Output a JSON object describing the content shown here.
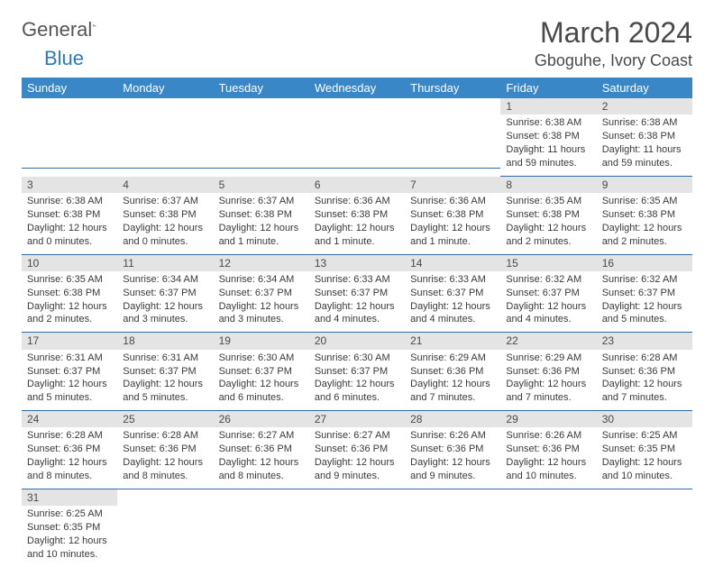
{
  "logo": {
    "text1": "General",
    "text2": "Blue",
    "brand_color": "#2c79bf"
  },
  "title": {
    "month": "March 2024",
    "location": "Gboguhe, Ivory Coast"
  },
  "colors": {
    "header_bg": "#3a87c7",
    "header_fg": "#ffffff",
    "daynum_bg": "#e4e4e4",
    "cell_border": "#2c6ca8",
    "text": "#3a3a3a"
  },
  "weekdays": [
    "Sunday",
    "Monday",
    "Tuesday",
    "Wednesday",
    "Thursday",
    "Friday",
    "Saturday"
  ],
  "weeks": [
    [
      null,
      null,
      null,
      null,
      null,
      {
        "n": "1",
        "sr": "Sunrise: 6:38 AM",
        "ss": "Sunset: 6:38 PM",
        "d1": "Daylight: 11 hours",
        "d2": "and 59 minutes."
      },
      {
        "n": "2",
        "sr": "Sunrise: 6:38 AM",
        "ss": "Sunset: 6:38 PM",
        "d1": "Daylight: 11 hours",
        "d2": "and 59 minutes."
      }
    ],
    [
      {
        "n": "3",
        "sr": "Sunrise: 6:38 AM",
        "ss": "Sunset: 6:38 PM",
        "d1": "Daylight: 12 hours",
        "d2": "and 0 minutes."
      },
      {
        "n": "4",
        "sr": "Sunrise: 6:37 AM",
        "ss": "Sunset: 6:38 PM",
        "d1": "Daylight: 12 hours",
        "d2": "and 0 minutes."
      },
      {
        "n": "5",
        "sr": "Sunrise: 6:37 AM",
        "ss": "Sunset: 6:38 PM",
        "d1": "Daylight: 12 hours",
        "d2": "and 1 minute."
      },
      {
        "n": "6",
        "sr": "Sunrise: 6:36 AM",
        "ss": "Sunset: 6:38 PM",
        "d1": "Daylight: 12 hours",
        "d2": "and 1 minute."
      },
      {
        "n": "7",
        "sr": "Sunrise: 6:36 AM",
        "ss": "Sunset: 6:38 PM",
        "d1": "Daylight: 12 hours",
        "d2": "and 1 minute."
      },
      {
        "n": "8",
        "sr": "Sunrise: 6:35 AM",
        "ss": "Sunset: 6:38 PM",
        "d1": "Daylight: 12 hours",
        "d2": "and 2 minutes."
      },
      {
        "n": "9",
        "sr": "Sunrise: 6:35 AM",
        "ss": "Sunset: 6:38 PM",
        "d1": "Daylight: 12 hours",
        "d2": "and 2 minutes."
      }
    ],
    [
      {
        "n": "10",
        "sr": "Sunrise: 6:35 AM",
        "ss": "Sunset: 6:38 PM",
        "d1": "Daylight: 12 hours",
        "d2": "and 2 minutes."
      },
      {
        "n": "11",
        "sr": "Sunrise: 6:34 AM",
        "ss": "Sunset: 6:37 PM",
        "d1": "Daylight: 12 hours",
        "d2": "and 3 minutes."
      },
      {
        "n": "12",
        "sr": "Sunrise: 6:34 AM",
        "ss": "Sunset: 6:37 PM",
        "d1": "Daylight: 12 hours",
        "d2": "and 3 minutes."
      },
      {
        "n": "13",
        "sr": "Sunrise: 6:33 AM",
        "ss": "Sunset: 6:37 PM",
        "d1": "Daylight: 12 hours",
        "d2": "and 4 minutes."
      },
      {
        "n": "14",
        "sr": "Sunrise: 6:33 AM",
        "ss": "Sunset: 6:37 PM",
        "d1": "Daylight: 12 hours",
        "d2": "and 4 minutes."
      },
      {
        "n": "15",
        "sr": "Sunrise: 6:32 AM",
        "ss": "Sunset: 6:37 PM",
        "d1": "Daylight: 12 hours",
        "d2": "and 4 minutes."
      },
      {
        "n": "16",
        "sr": "Sunrise: 6:32 AM",
        "ss": "Sunset: 6:37 PM",
        "d1": "Daylight: 12 hours",
        "d2": "and 5 minutes."
      }
    ],
    [
      {
        "n": "17",
        "sr": "Sunrise: 6:31 AM",
        "ss": "Sunset: 6:37 PM",
        "d1": "Daylight: 12 hours",
        "d2": "and 5 minutes."
      },
      {
        "n": "18",
        "sr": "Sunrise: 6:31 AM",
        "ss": "Sunset: 6:37 PM",
        "d1": "Daylight: 12 hours",
        "d2": "and 5 minutes."
      },
      {
        "n": "19",
        "sr": "Sunrise: 6:30 AM",
        "ss": "Sunset: 6:37 PM",
        "d1": "Daylight: 12 hours",
        "d2": "and 6 minutes."
      },
      {
        "n": "20",
        "sr": "Sunrise: 6:30 AM",
        "ss": "Sunset: 6:37 PM",
        "d1": "Daylight: 12 hours",
        "d2": "and 6 minutes."
      },
      {
        "n": "21",
        "sr": "Sunrise: 6:29 AM",
        "ss": "Sunset: 6:36 PM",
        "d1": "Daylight: 12 hours",
        "d2": "and 7 minutes."
      },
      {
        "n": "22",
        "sr": "Sunrise: 6:29 AM",
        "ss": "Sunset: 6:36 PM",
        "d1": "Daylight: 12 hours",
        "d2": "and 7 minutes."
      },
      {
        "n": "23",
        "sr": "Sunrise: 6:28 AM",
        "ss": "Sunset: 6:36 PM",
        "d1": "Daylight: 12 hours",
        "d2": "and 7 minutes."
      }
    ],
    [
      {
        "n": "24",
        "sr": "Sunrise: 6:28 AM",
        "ss": "Sunset: 6:36 PM",
        "d1": "Daylight: 12 hours",
        "d2": "and 8 minutes."
      },
      {
        "n": "25",
        "sr": "Sunrise: 6:28 AM",
        "ss": "Sunset: 6:36 PM",
        "d1": "Daylight: 12 hours",
        "d2": "and 8 minutes."
      },
      {
        "n": "26",
        "sr": "Sunrise: 6:27 AM",
        "ss": "Sunset: 6:36 PM",
        "d1": "Daylight: 12 hours",
        "d2": "and 8 minutes."
      },
      {
        "n": "27",
        "sr": "Sunrise: 6:27 AM",
        "ss": "Sunset: 6:36 PM",
        "d1": "Daylight: 12 hours",
        "d2": "and 9 minutes."
      },
      {
        "n": "28",
        "sr": "Sunrise: 6:26 AM",
        "ss": "Sunset: 6:36 PM",
        "d1": "Daylight: 12 hours",
        "d2": "and 9 minutes."
      },
      {
        "n": "29",
        "sr": "Sunrise: 6:26 AM",
        "ss": "Sunset: 6:36 PM",
        "d1": "Daylight: 12 hours",
        "d2": "and 10 minutes."
      },
      {
        "n": "30",
        "sr": "Sunrise: 6:25 AM",
        "ss": "Sunset: 6:35 PM",
        "d1": "Daylight: 12 hours",
        "d2": "and 10 minutes."
      }
    ],
    [
      {
        "n": "31",
        "sr": "Sunrise: 6:25 AM",
        "ss": "Sunset: 6:35 PM",
        "d1": "Daylight: 12 hours",
        "d2": "and 10 minutes."
      },
      null,
      null,
      null,
      null,
      null,
      null
    ]
  ]
}
